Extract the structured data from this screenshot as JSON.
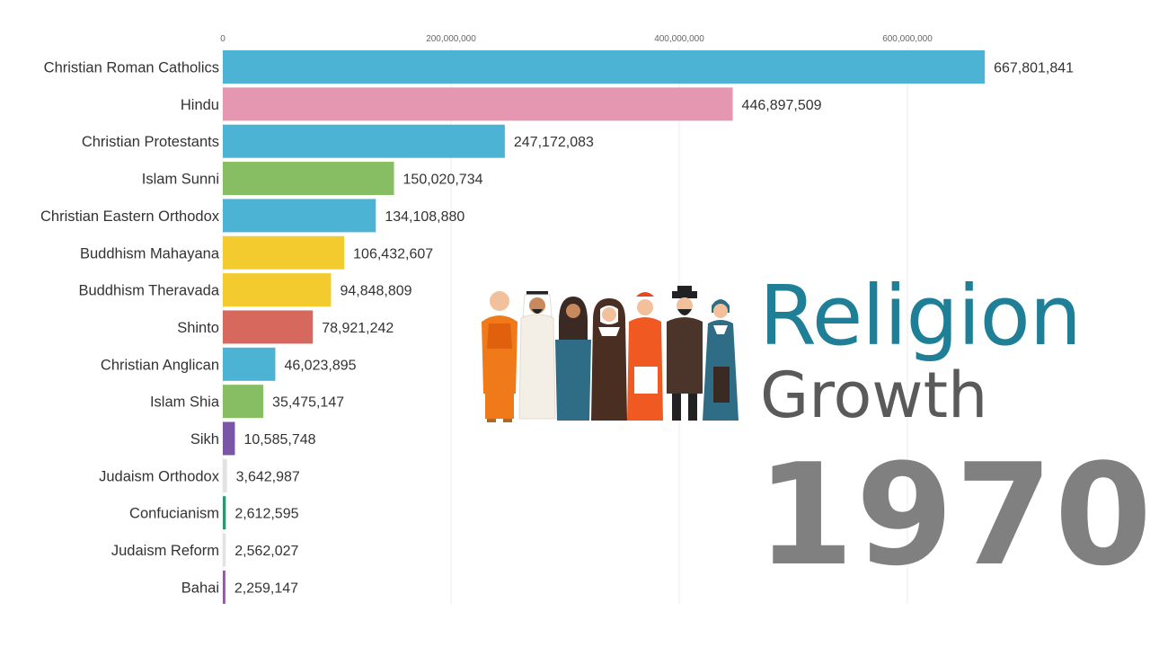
{
  "title": "Religion",
  "subtitle": "Growth",
  "year": "1970",
  "illustration": "people-of-different-religions-illustration",
  "chart_data": {
    "type": "bar",
    "orientation": "horizontal",
    "xlim": [
      0,
      700000000
    ],
    "grid": true,
    "ticks": [
      {
        "value": 0,
        "label": "0"
      },
      {
        "value": 200000000,
        "label": "200,000,000"
      },
      {
        "value": 400000000,
        "label": "400,000,000"
      },
      {
        "value": 600000000,
        "label": "600,000,000"
      }
    ],
    "bars": [
      {
        "category": "Christian Roman Catholics",
        "value": 667801841,
        "label": "667,801,841",
        "color": "#4db3d4"
      },
      {
        "category": "Hindu",
        "value": 446897509,
        "label": "446,897,509",
        "color": "#e597b2"
      },
      {
        "category": "Christian Protestants",
        "value": 247172083,
        "label": "247,172,083",
        "color": "#4db3d4"
      },
      {
        "category": "Islam Sunni",
        "value": 150020734,
        "label": "150,020,734",
        "color": "#88be63"
      },
      {
        "category": "Christian Eastern Orthodox",
        "value": 134108880,
        "label": "134,108,880",
        "color": "#4db3d4"
      },
      {
        "category": "Buddhism Mahayana",
        "value": 106432607,
        "label": "106,432,607",
        "color": "#f3cb2f"
      },
      {
        "category": "Buddhism Theravada",
        "value": 94848809,
        "label": "94,848,809",
        "color": "#f3cb2f"
      },
      {
        "category": "Shinto",
        "value": 78921242,
        "label": "78,921,242",
        "color": "#d6685d"
      },
      {
        "category": "Christian Anglican",
        "value": 46023895,
        "label": "46,023,895",
        "color": "#4db3d4"
      },
      {
        "category": "Islam Shia",
        "value": 35475147,
        "label": "35,475,147",
        "color": "#88be63"
      },
      {
        "category": "Sikh",
        "value": 10585748,
        "label": "10,585,748",
        "color": "#7a57a6"
      },
      {
        "category": "Judaism Orthodox",
        "value": 3642987,
        "label": "3,642,987",
        "color": "#e2e2e2"
      },
      {
        "category": "Confucianism",
        "value": 2612595,
        "label": "2,612,595",
        "color": "#2e9474"
      },
      {
        "category": "Judaism Reform",
        "value": 2562027,
        "label": "2,562,027",
        "color": "#e2e2e2"
      },
      {
        "category": "Bahai",
        "value": 2259147,
        "label": "2,259,147",
        "color": "#8d5b9e"
      }
    ]
  }
}
